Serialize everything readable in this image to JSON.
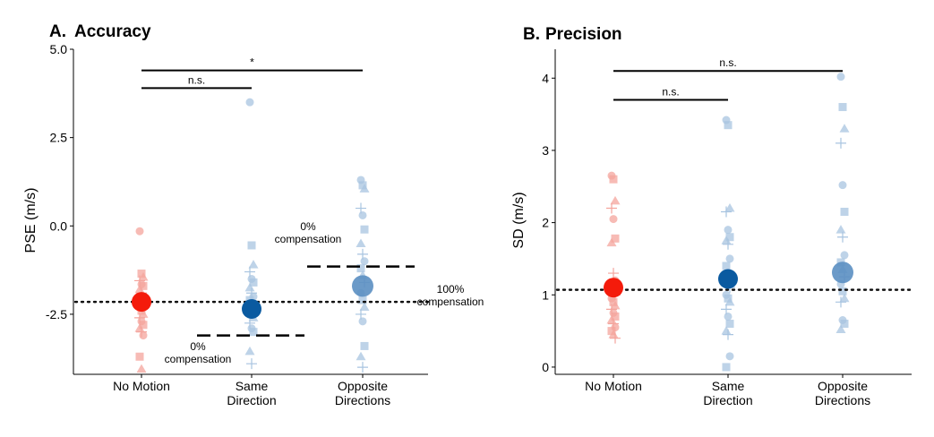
{
  "chart_data": [
    {
      "type": "scatter",
      "panel": "A.",
      "title": "Accuracy",
      "ylabel": "PSE (m/s)",
      "xlabel": "",
      "ylim": [
        -4.2,
        5.0
      ],
      "yticks": [
        5.0,
        2.5,
        0.0,
        -2.5
      ],
      "ytick_labels": [
        "5.0",
        "2.5",
        "0.0",
        "-2.5"
      ],
      "categories": [
        [
          "No Motion"
        ],
        [
          "Same",
          "Direction"
        ],
        [
          "Opposite",
          "Directions"
        ]
      ],
      "colors": {
        "no_motion": "#f41b0b",
        "same": "#0a5aa0",
        "opposite": "#5b8fc2",
        "points_red": "#f4a49c",
        "points_blue": "#a8c4e0"
      },
      "means": [
        -2.15,
        -2.35,
        -1.7
      ],
      "points": [
        [
          -0.15,
          -1.35,
          -1.45,
          -1.55,
          -1.65,
          -1.7,
          -1.8,
          -1.9,
          -2.0,
          -2.05,
          -2.1,
          -2.2,
          -2.3,
          -2.4,
          -2.5,
          -2.6,
          -2.7,
          -2.8,
          -2.9,
          -3.0,
          -3.1,
          -3.7,
          -4.05
        ],
        [
          3.5,
          -0.55,
          -1.1,
          -1.3,
          -1.5,
          -1.6,
          -1.75,
          -1.9,
          -2.0,
          -2.1,
          -2.2,
          -2.3,
          -2.4,
          -2.5,
          -2.6,
          -2.75,
          -2.9,
          -3.0,
          -3.55,
          -3.9
        ],
        [
          1.3,
          1.15,
          1.05,
          0.5,
          0.3,
          -0.1,
          -0.5,
          -0.8,
          -1.0,
          -1.2,
          -1.4,
          -1.6,
          -1.9,
          -2.1,
          -2.3,
          -2.5,
          -2.7,
          -3.4,
          -3.7,
          -4.0
        ]
      ],
      "reference_line": -2.15,
      "reference_label": [
        "100%",
        "compensation"
      ],
      "compensation_markers": [
        {
          "category_index": 1,
          "y": -3.1,
          "label": [
            "0%",
            "compensation"
          ]
        },
        {
          "category_index": 2,
          "y": -1.15,
          "label": [
            "0%",
            "compensation"
          ]
        }
      ],
      "significance": [
        {
          "from": 0,
          "to": 1,
          "label": "n.s.",
          "y": 3.9
        },
        {
          "from": 0,
          "to": 2,
          "label": "*",
          "y": 4.4
        }
      ],
      "grid": false
    },
    {
      "type": "scatter",
      "panel": "B.",
      "title": "Precision",
      "ylabel": "SD (m/s)",
      "xlabel": "",
      "ylim": [
        -0.1,
        4.4
      ],
      "yticks": [
        0,
        1,
        2,
        3,
        4
      ],
      "ytick_labels": [
        "0",
        "1",
        "2",
        "3",
        "4"
      ],
      "categories": [
        [
          "No Motion"
        ],
        [
          "Same",
          "Direction"
        ],
        [
          "Opposite",
          "Directions"
        ]
      ],
      "colors": {
        "no_motion": "#f41b0b",
        "same": "#0a5aa0",
        "opposite": "#5b8fc2",
        "points_red": "#f4a49c",
        "points_blue": "#a8c4e0"
      },
      "means": [
        1.1,
        1.22,
        1.31
      ],
      "points": [
        [
          2.65,
          2.6,
          2.3,
          2.2,
          2.05,
          1.78,
          1.72,
          1.3,
          1.2,
          1.15,
          1.05,
          1.0,
          0.95,
          0.9,
          0.85,
          0.8,
          0.75,
          0.7,
          0.65,
          0.6,
          0.55,
          0.5,
          0.45,
          0.4
        ],
        [
          3.42,
          3.35,
          2.2,
          2.15,
          1.9,
          1.8,
          1.75,
          1.7,
          1.5,
          1.4,
          1.2,
          1.1,
          1.0,
          0.95,
          0.9,
          0.8,
          0.7,
          0.6,
          0.5,
          0.45,
          0.15,
          0.0
        ],
        [
          4.02,
          3.6,
          3.3,
          3.1,
          2.52,
          2.15,
          1.9,
          1.8,
          1.55,
          1.45,
          1.35,
          1.25,
          1.15,
          1.05,
          0.95,
          0.9,
          0.65,
          0.6,
          0.52
        ]
      ],
      "reference_line": 1.07,
      "significance": [
        {
          "from": 0,
          "to": 1,
          "label": "n.s.",
          "y": 3.7
        },
        {
          "from": 0,
          "to": 2,
          "label": "n.s.",
          "y": 4.1
        }
      ],
      "grid": false
    }
  ]
}
